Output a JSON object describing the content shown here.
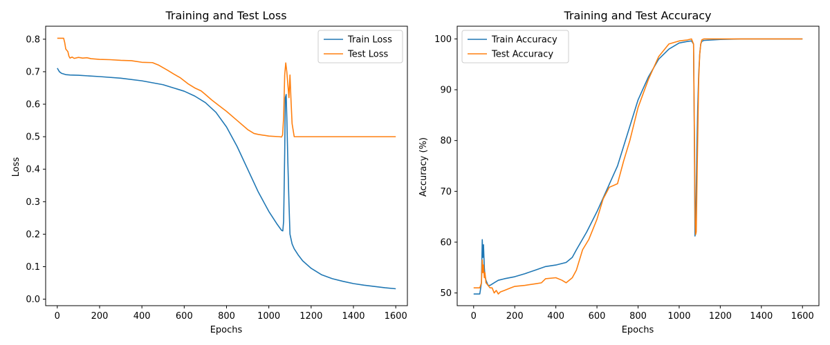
{
  "colors": {
    "train": "#1f77b4",
    "test": "#ff7f0e"
  },
  "chart_data": [
    {
      "type": "line",
      "title": "Training and Test Loss",
      "xlabel": "Epochs",
      "ylabel": "Loss",
      "xlim": [
        -55,
        1655
      ],
      "ylim": [
        -0.02,
        0.84
      ],
      "xticks": [
        0,
        200,
        400,
        600,
        800,
        1000,
        1200,
        1400,
        1600
      ],
      "yticks": [
        0.0,
        0.1,
        0.2,
        0.3,
        0.4,
        0.5,
        0.6,
        0.7,
        0.8
      ],
      "ytick_labels": [
        "0.0",
        "0.1",
        "0.2",
        "0.3",
        "0.4",
        "0.5",
        "0.6",
        "0.7",
        "0.8"
      ],
      "legend": "top-right",
      "grid": false,
      "series": [
        {
          "name": "Train Loss",
          "color": "#1f77b4",
          "x": [
            0,
            10,
            20,
            40,
            60,
            100,
            200,
            300,
            400,
            500,
            600,
            650,
            700,
            750,
            800,
            850,
            900,
            950,
            1000,
            1040,
            1060,
            1066,
            1070,
            1075,
            1078,
            1082,
            1085,
            1090,
            1095,
            1100,
            1110,
            1120,
            1140,
            1160,
            1200,
            1250,
            1300,
            1350,
            1400,
            1450,
            1500,
            1550,
            1600
          ],
          "y": [
            0.711,
            0.7,
            0.695,
            0.691,
            0.69,
            0.689,
            0.685,
            0.68,
            0.672,
            0.66,
            0.64,
            0.625,
            0.605,
            0.575,
            0.53,
            0.47,
            0.4,
            0.33,
            0.27,
            0.23,
            0.212,
            0.21,
            0.24,
            0.45,
            0.62,
            0.63,
            0.56,
            0.42,
            0.3,
            0.2,
            0.17,
            0.155,
            0.135,
            0.118,
            0.095,
            0.075,
            0.063,
            0.055,
            0.048,
            0.043,
            0.039,
            0.035,
            0.032
          ]
        },
        {
          "name": "Test Loss",
          "color": "#ff7f0e",
          "x": [
            0,
            30,
            35,
            40,
            50,
            55,
            60,
            70,
            80,
            100,
            120,
            140,
            160,
            200,
            250,
            300,
            350,
            400,
            450,
            480,
            520,
            550,
            580,
            620,
            650,
            680,
            700,
            730,
            760,
            800,
            850,
            900,
            930,
            950,
            1000,
            1050,
            1060,
            1065,
            1070,
            1075,
            1080,
            1085,
            1090,
            1095,
            1100,
            1105,
            1110,
            1120,
            1200,
            1300,
            1400,
            1500,
            1600
          ],
          "y": [
            0.803,
            0.803,
            0.79,
            0.77,
            0.762,
            0.748,
            0.742,
            0.745,
            0.741,
            0.744,
            0.742,
            0.743,
            0.74,
            0.738,
            0.737,
            0.735,
            0.734,
            0.729,
            0.728,
            0.72,
            0.705,
            0.693,
            0.682,
            0.662,
            0.65,
            0.641,
            0.63,
            0.613,
            0.598,
            0.578,
            0.55,
            0.522,
            0.51,
            0.507,
            0.502,
            0.5,
            0.499,
            0.505,
            0.56,
            0.69,
            0.727,
            0.7,
            0.66,
            0.62,
            0.69,
            0.61,
            0.54,
            0.5,
            0.5,
            0.5,
            0.5,
            0.5,
            0.5
          ]
        }
      ]
    },
    {
      "type": "line",
      "title": "Training and Test Accuracy",
      "xlabel": "Epochs",
      "ylabel": "Accuracy (%)",
      "xlim": [
        -80,
        1680
      ],
      "ylim": [
        47.5,
        102.5
      ],
      "xticks": [
        0,
        200,
        400,
        600,
        800,
        1000,
        1200,
        1400,
        1600
      ],
      "yticks": [
        50,
        60,
        70,
        80,
        90,
        100
      ],
      "ytick_labels": [
        "50",
        "60",
        "70",
        "80",
        "90",
        "100"
      ],
      "legend": "top-left",
      "grid": false,
      "series": [
        {
          "name": "Train Accuracy",
          "color": "#1f77b4",
          "x": [
            0,
            30,
            38,
            42,
            45,
            48,
            52,
            55,
            60,
            65,
            70,
            80,
            100,
            120,
            150,
            200,
            250,
            300,
            350,
            400,
            450,
            480,
            500,
            550,
            600,
            650,
            700,
            750,
            800,
            850,
            900,
            950,
            1000,
            1040,
            1060,
            1070,
            1074,
            1077,
            1080,
            1083,
            1086,
            1090,
            1095,
            1100,
            1105,
            1110,
            1120,
            1200,
            1300,
            1400,
            1500,
            1600
          ],
          "y": [
            49.8,
            49.8,
            52.0,
            60.5,
            57.0,
            59.5,
            55.0,
            53.5,
            52.5,
            52.0,
            51.5,
            51.5,
            52.0,
            52.5,
            52.8,
            53.2,
            53.8,
            54.5,
            55.2,
            55.5,
            56.0,
            57.0,
            58.5,
            62.0,
            66.0,
            70.5,
            75.0,
            81.5,
            88.0,
            92.5,
            96.0,
            98.0,
            99.2,
            99.5,
            99.6,
            99.0,
            80.0,
            61.2,
            63.0,
            70.0,
            78.0,
            86.0,
            93.0,
            97.0,
            99.0,
            99.5,
            99.7,
            99.9,
            100.0,
            100.0,
            100.0,
            100.0
          ]
        },
        {
          "name": "Test Accuracy",
          "color": "#ff7f0e",
          "x": [
            0,
            30,
            38,
            42,
            45,
            48,
            52,
            55,
            60,
            70,
            80,
            90,
            100,
            110,
            120,
            130,
            150,
            180,
            200,
            250,
            300,
            330,
            350,
            400,
            430,
            450,
            480,
            500,
            530,
            560,
            600,
            630,
            660,
            700,
            730,
            760,
            800,
            850,
            900,
            950,
            1000,
            1040,
            1060,
            1070,
            1074,
            1077,
            1080,
            1083,
            1086,
            1090,
            1095,
            1100,
            1105,
            1110,
            1120,
            1200,
            1300,
            1400,
            1500,
            1600
          ],
          "y": [
            51.0,
            51.0,
            52.0,
            56.5,
            54.0,
            55.5,
            53.0,
            54.0,
            52.0,
            51.5,
            51.0,
            51.0,
            50.0,
            50.5,
            49.8,
            50.2,
            50.5,
            51.0,
            51.3,
            51.5,
            51.8,
            52.0,
            52.8,
            53.0,
            52.5,
            52.0,
            53.0,
            54.5,
            58.5,
            60.5,
            64.5,
            68.5,
            70.8,
            71.5,
            76.0,
            80.0,
            86.5,
            92.0,
            96.5,
            99.0,
            99.6,
            99.8,
            100.0,
            99.0,
            82.0,
            66.0,
            61.5,
            62.0,
            70.0,
            80.0,
            92.0,
            97.0,
            99.0,
            99.8,
            100.0,
            100.0,
            100.0,
            100.0,
            100.0,
            100.0
          ]
        }
      ]
    }
  ]
}
